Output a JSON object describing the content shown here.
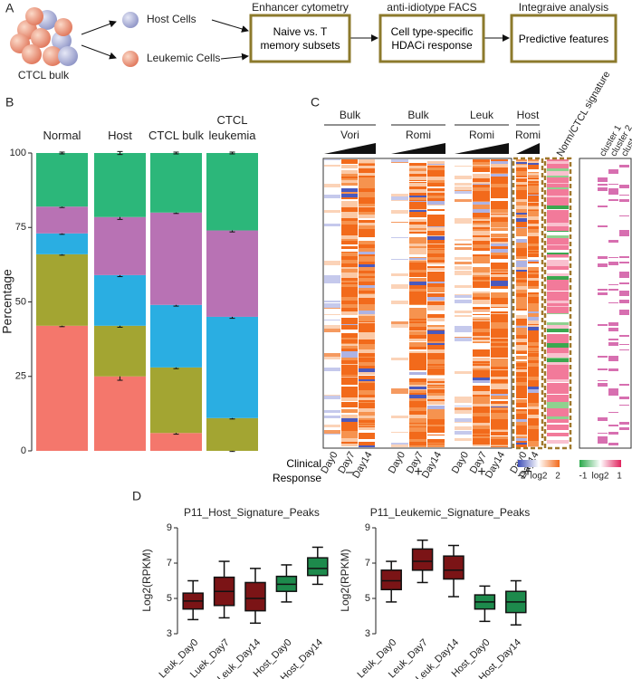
{
  "panel_a": {
    "label": "A",
    "bulk_label": "CTCL bulk",
    "host_cells": "Host Cells",
    "leukemic_cells": "Leukemic Cells",
    "steps": [
      {
        "header": "Enhancer cytometry",
        "box": "Naive vs. T memory subsets"
      },
      {
        "header": "anti-idiotype FACS",
        "box": "Cell type-specific HDACi response"
      },
      {
        "header": "Integraive analysis",
        "box": "Predictive features"
      }
    ]
  },
  "panel_b": {
    "label": "B"
  },
  "panel_c": {
    "label": "C",
    "groups": [
      {
        "top": "Bulk",
        "drug": "Vori",
        "days": [
          "Day0",
          "Day7",
          "Day14"
        ],
        "response": "–"
      },
      {
        "top": "Bulk",
        "drug": "Romi",
        "days": [
          "Day0",
          "Day7",
          "Day14"
        ],
        "response": "+"
      },
      {
        "top": "Leuk",
        "drug": "Romi",
        "days": [
          "Day0",
          "Day7",
          "Day14"
        ],
        "response": "+"
      },
      {
        "top": "Host",
        "drug": "Romi",
        "days": [
          "Day0",
          "Day14"
        ],
        "response": "+"
      }
    ],
    "signature": "Norm/CTCL signature",
    "clusters": [
      "cluster 1",
      "cluster 2",
      "cluster 3"
    ],
    "response_label": "Clinical Response",
    "legend_1": [
      "-2",
      "log2",
      "2"
    ],
    "legend_2": [
      "-1",
      "log2",
      "1"
    ]
  },
  "panel_d": {
    "label": "D"
  },
  "chart_data": [
    {
      "type": "stacked_bar",
      "categories": [
        "Normal",
        "Host",
        "CTCL bulk",
        "CTCL leukemia"
      ],
      "ylabel": "Percentage",
      "ylim": [
        0,
        100
      ],
      "yticks": [
        0,
        25,
        50,
        75,
        100
      ],
      "series": [
        {
          "color": "#f4776c",
          "values": [
            42,
            25,
            6,
            0
          ],
          "errors": [
            0.3,
            1.3,
            0.4,
            0.2
          ]
        },
        {
          "color": "#a3a532",
          "values": [
            24,
            17,
            22,
            11
          ],
          "errors": [
            0.3,
            0.5,
            0.4,
            0.3
          ]
        },
        {
          "color": "#2aaee2",
          "values": [
            7,
            17,
            21,
            34
          ],
          "errors": [
            0.3,
            0.5,
            0.4,
            0.5
          ]
        },
        {
          "color": "#b872b4",
          "values": [
            9,
            19.5,
            31,
            29
          ],
          "errors": [
            0.3,
            0.8,
            0.3,
            0.5
          ]
        },
        {
          "color": "#2cb77a",
          "values": [
            18,
            21.5,
            20,
            26
          ],
          "errors": [
            0.3,
            0.5,
            0.3,
            0.3
          ]
        }
      ]
    },
    {
      "type": "box",
      "title": "P11_Host_Signature_Peaks",
      "ylabel": "Log2(RPKM)",
      "categories": [
        "Leuk_Day0",
        "Luek_Day7",
        "Leuk_Day14",
        "Host_Day0",
        "Host_Day14"
      ],
      "colors": [
        "#7b1416",
        "#7b1416",
        "#7b1416",
        "#1d8a4c",
        "#1d8a4c"
      ],
      "whisker_low": [
        3.8,
        3.9,
        3.6,
        4.8,
        5.8
      ],
      "q1": [
        4.4,
        4.6,
        4.3,
        5.4,
        6.3
      ],
      "median": [
        4.85,
        5.4,
        5.0,
        5.8,
        6.7
      ],
      "q3": [
        5.3,
        6.2,
        5.9,
        6.25,
        7.3
      ],
      "whisker_high": [
        6.0,
        7.1,
        6.7,
        6.9,
        7.9
      ],
      "ylim": [
        3,
        9
      ],
      "yticks": [
        3,
        5,
        7,
        9
      ]
    },
    {
      "type": "box",
      "title": "P11_Leukemic_Signature_Peaks",
      "ylabel": "Log2(RPKM)",
      "categories": [
        "Leuk_Day0",
        "Leuk_Day7",
        "Leuk_Day14",
        "Host_Day0",
        "Host_Day14"
      ],
      "colors": [
        "#7b1416",
        "#7b1416",
        "#7b1416",
        "#1d8a4c",
        "#1d8a4c"
      ],
      "whisker_low": [
        4.8,
        5.9,
        5.1,
        3.7,
        3.5
      ],
      "q1": [
        5.5,
        6.6,
        6.1,
        4.4,
        4.2
      ],
      "median": [
        6.0,
        7.1,
        6.6,
        4.8,
        4.8
      ],
      "q3": [
        6.6,
        7.8,
        7.4,
        5.2,
        5.4
      ],
      "whisker_high": [
        7.1,
        8.3,
        8.0,
        5.7,
        6.0
      ],
      "ylim": [
        3,
        9
      ],
      "yticks": [
        3,
        5,
        7,
        9
      ]
    }
  ]
}
